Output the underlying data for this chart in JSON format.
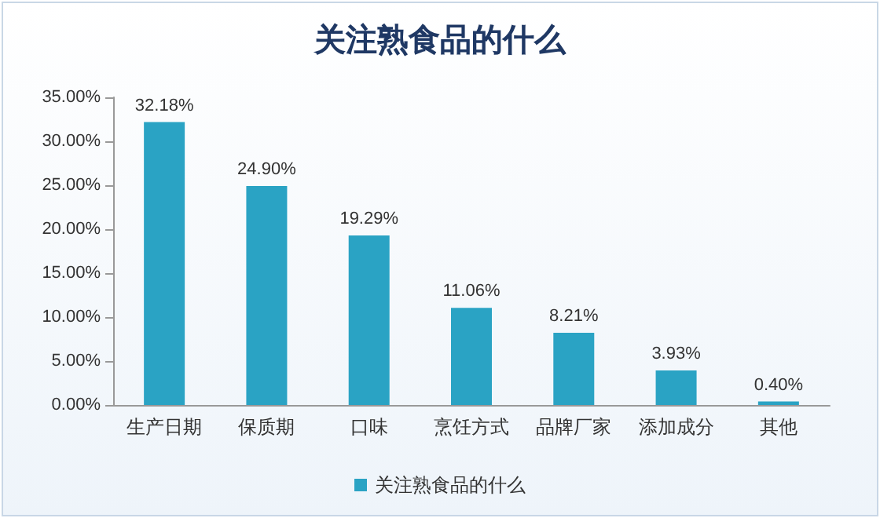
{
  "chart_data": {
    "type": "bar",
    "title": "关注熟食品的什么",
    "categories": [
      "生产日期",
      "保质期",
      "口味",
      "烹饪方式",
      "品牌厂家",
      "添加成分",
      "其他"
    ],
    "series": [
      {
        "name": "关注熟食品的什么",
        "color": "#2aa3c4",
        "values": [
          32.18,
          24.9,
          19.29,
          11.06,
          8.21,
          3.93,
          0.4
        ],
        "value_labels": [
          "32.18%",
          "24.90%",
          "19.29%",
          "11.06%",
          "8.21%",
          "3.93%",
          "0.40%"
        ]
      }
    ],
    "ylim": [
      0,
      35
    ],
    "yticks": [
      {
        "value": 0,
        "label": "0.00%"
      },
      {
        "value": 5,
        "label": "5.00%"
      },
      {
        "value": 10,
        "label": "10.00%"
      },
      {
        "value": 15,
        "label": "15.00%"
      },
      {
        "value": 20,
        "label": "20.00%"
      },
      {
        "value": 25,
        "label": "25.00%"
      },
      {
        "value": 30,
        "label": "30.00%"
      },
      {
        "value": 35,
        "label": "35.00%"
      }
    ],
    "grid": false,
    "legend": "bottom"
  }
}
